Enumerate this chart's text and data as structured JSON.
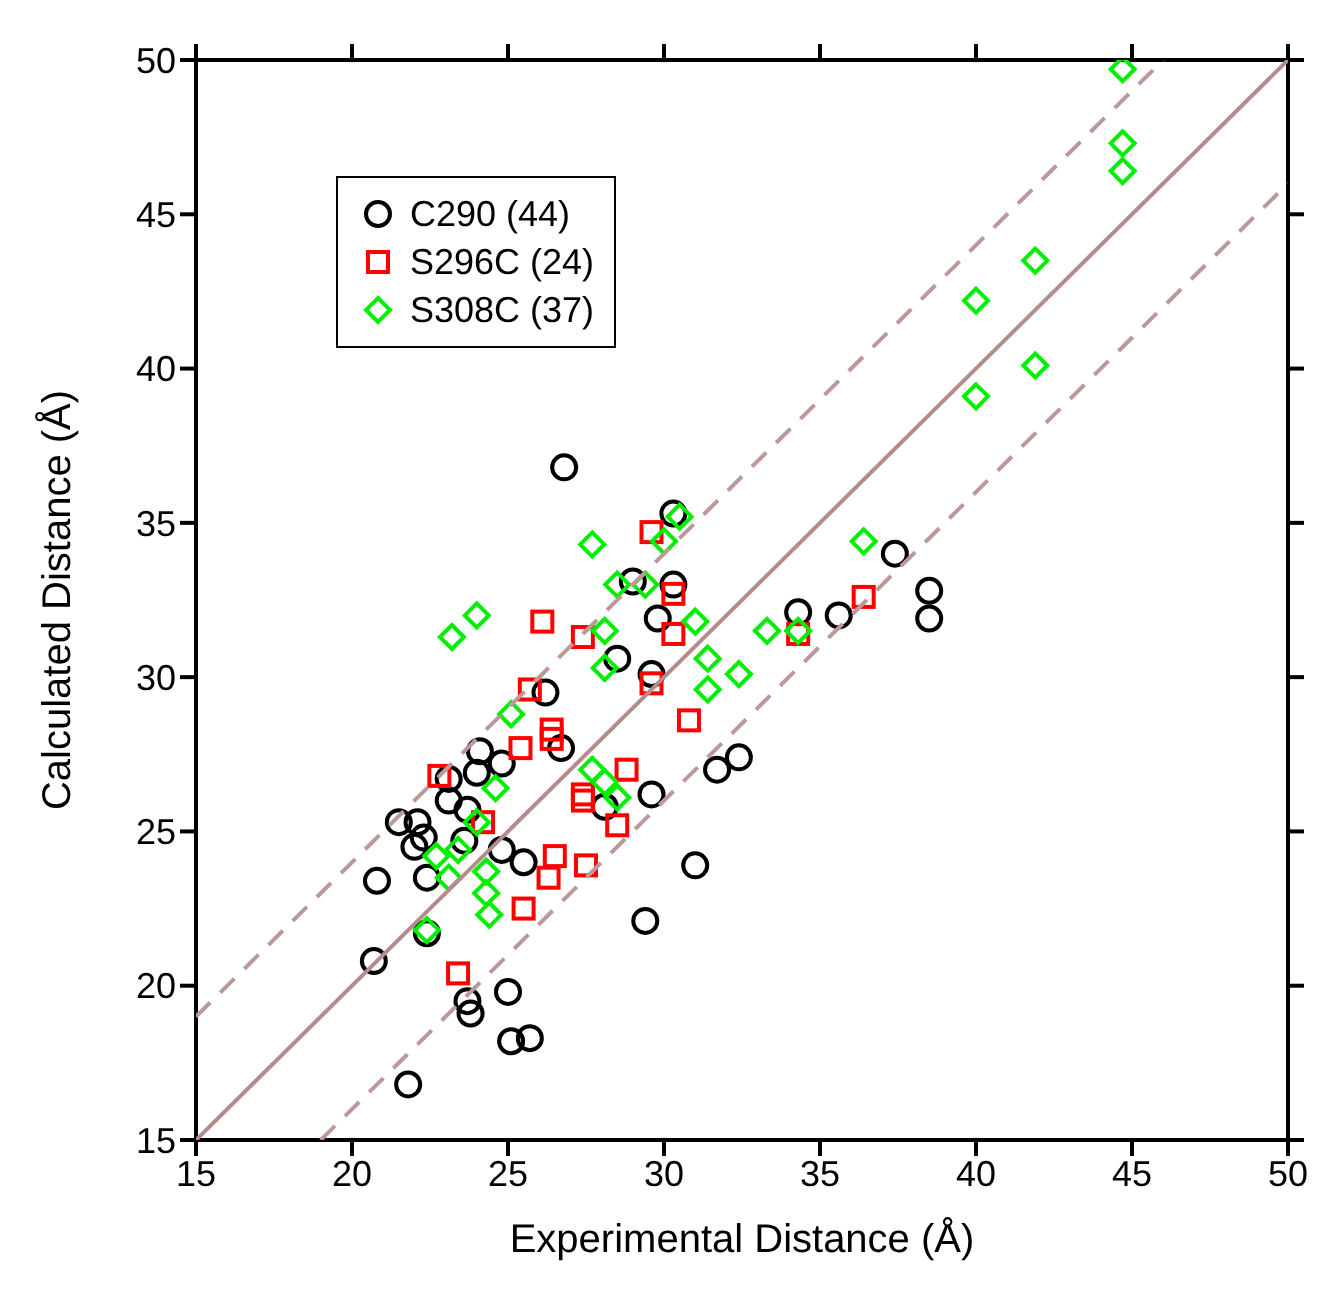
{
  "chart_data": {
    "type": "scatter",
    "xlabel": "Experimental Distance (Å)",
    "ylabel": "Calculated Distance (Å)",
    "xlim": [
      15,
      50
    ],
    "ylim": [
      15,
      50
    ],
    "xticks": [
      15,
      20,
      25,
      30,
      35,
      40,
      45,
      50
    ],
    "yticks": [
      15,
      20,
      25,
      30,
      35,
      40,
      45,
      50
    ],
    "legend": "top left",
    "series": [
      {
        "name": "C290 (44)",
        "color": "#000000",
        "marker": "circle",
        "x": [
          26.8,
          30.3,
          30.3,
          29.0,
          29.8,
          28.5,
          29.6,
          26.2,
          37.4,
          38.5,
          38.5,
          35.6,
          34.3,
          26.7,
          24.1,
          24.8,
          24.0,
          23.1,
          23.1,
          23.7,
          21.5,
          22.1,
          22.3,
          22.0,
          23.6,
          24.8,
          25.5,
          20.8,
          22.4,
          22.4,
          20.7,
          23.7,
          23.8,
          25.0,
          25.1,
          25.7,
          21.8,
          29.4,
          31.7,
          32.4,
          29.6,
          31.0,
          28.1
        ],
        "values": [
          36.8,
          35.3,
          33.0,
          33.1,
          31.9,
          30.6,
          30.1,
          29.5,
          34.0,
          32.8,
          31.9,
          32.0,
          32.1,
          27.7,
          27.6,
          27.2,
          26.9,
          26.7,
          26.0,
          25.7,
          25.3,
          25.3,
          24.8,
          24.5,
          24.7,
          24.4,
          24.0,
          23.4,
          23.5,
          21.7,
          20.8,
          19.5,
          19.1,
          19.8,
          18.2,
          18.3,
          16.8,
          22.1,
          27.0,
          27.4,
          26.2,
          23.9,
          25.8
        ]
      },
      {
        "name": "S296C (24)",
        "color": "#ff0000",
        "marker": "square",
        "x": [
          26.1,
          27.4,
          25.7,
          25.4,
          26.4,
          26.4,
          22.8,
          24.2,
          27.4,
          27.4,
          28.8,
          28.5,
          26.5,
          26.3,
          27.5,
          25.5,
          23.4,
          29.6,
          30.3,
          30.3,
          29.6,
          30.8,
          34.3,
          36.4
        ],
        "values": [
          31.8,
          31.3,
          29.6,
          27.7,
          28.3,
          28.0,
          26.8,
          25.3,
          26.2,
          26.0,
          27.0,
          25.2,
          24.2,
          23.5,
          23.9,
          22.5,
          20.4,
          34.7,
          32.7,
          31.4,
          29.8,
          28.6,
          31.4,
          32.6
        ]
      },
      {
        "name": "S308C (37)",
        "color": "#00ee00",
        "marker": "diamond",
        "x": [
          27.7,
          28.5,
          24.0,
          23.2,
          28.1,
          28.1,
          25.1,
          24.6,
          27.7,
          28.1,
          28.5,
          24.0,
          22.7,
          23.4,
          23.1,
          24.3,
          24.3,
          24.4,
          22.4,
          30.5,
          30.0,
          29.4,
          31.0,
          31.4,
          32.4,
          31.4,
          33.3,
          34.3,
          36.4,
          44.7,
          44.7,
          44.7,
          41.9,
          40.0,
          41.9,
          40.0
        ],
        "values": [
          34.3,
          33.0,
          32.0,
          31.3,
          31.5,
          30.3,
          28.8,
          26.4,
          27.0,
          26.6,
          26.1,
          25.3,
          24.2,
          24.4,
          23.5,
          23.7,
          23.0,
          22.3,
          21.8,
          35.2,
          34.4,
          33.0,
          31.8,
          30.6,
          30.1,
          29.6,
          31.5,
          31.5,
          34.4,
          49.7,
          47.3,
          46.4,
          43.5,
          42.2,
          40.1,
          39.1
        ]
      },
      {
        "type": "line",
        "color": "#b48c8c",
        "line_style": "solid",
        "x": [
          15,
          50
        ],
        "values": [
          15,
          50
        ]
      },
      {
        "type": "line",
        "color": "#bb9999",
        "line_style": "dashed",
        "x": [
          15,
          46
        ],
        "values": [
          19,
          50
        ]
      },
      {
        "type": "line",
        "color": "#bb9999",
        "line_style": "dashed",
        "x": [
          19,
          50
        ],
        "values": [
          15,
          46
        ]
      }
    ]
  }
}
